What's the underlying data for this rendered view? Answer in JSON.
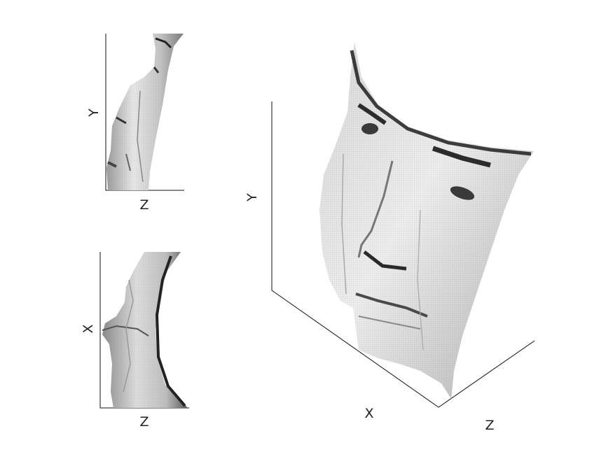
{
  "figure": {
    "side_view": {
      "x_axis_label": "Z",
      "y_axis_label": "Y"
    },
    "top_view": {
      "x_axis_label": "Z",
      "y_axis_label": "X"
    },
    "main_view": {
      "x_axis_label": "X",
      "y_axis_label": "Y",
      "z_axis_label": "Z"
    }
  },
  "colors": {
    "axis": "#111111",
    "surface_light": "#f2f2f2",
    "surface_mid": "#b5b5b5",
    "surface_dark": "#3a3a3a"
  }
}
